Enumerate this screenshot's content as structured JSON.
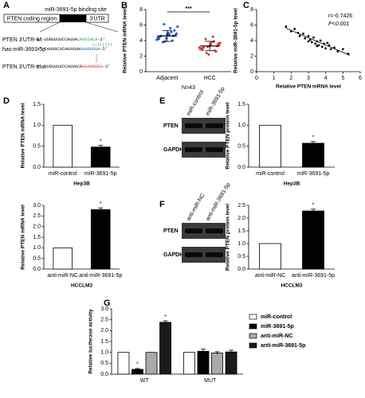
{
  "panel_labels": [
    "A",
    "B",
    "C",
    "D",
    "E",
    "F",
    "G"
  ],
  "diagram": {
    "gene_regions": [
      "PTEN coding region",
      "miR-3691-5p binding site",
      "3'UTR"
    ],
    "sequences": [
      {
        "name": "PTEN 3'UTR-wt",
        "segments": [
          {
            "text": "5'-UUGUUUUCCAUUA",
            "color": "#000000"
          },
          {
            "text": "CAUCCACA",
            "color": "#1a9a50"
          },
          {
            "text": "-3'",
            "color": "#000000"
          }
        ]
      },
      {
        "name": "has-miR-3691-5p",
        "segments": [
          {
            "text": "3'-CAUGGCUCAGGGUA",
            "color": "#000000"
          },
          {
            "text": "GUAGGUGA",
            "color": "#2b5fbf"
          },
          {
            "text": "-5'",
            "color": "#000000"
          }
        ]
      },
      {
        "name": "PTEN 3'UTR-mut",
        "segments": [
          {
            "text": "5'-UUGUUUUCCAUUACA",
            "color": "#000000"
          },
          {
            "text": "GAAGGUGA",
            "color": "#d62728"
          },
          {
            "text": "-3'",
            "color": "#000000"
          }
        ]
      }
    ]
  },
  "blots": [
    {
      "lanes": [
        "miR-control",
        "miR-3691-5p"
      ],
      "rows": [
        "PTEN",
        "GAPDH"
      ]
    },
    {
      "lanes": [
        "anti-miR-NC",
        "anti-miR-3691-5p"
      ],
      "rows": [
        "PTEN",
        "GAPDH"
      ]
    }
  ],
  "chart_data": [
    {
      "type": "dot",
      "categories": [
        "Adjacent",
        "HCC"
      ],
      "colors": [
        "#1f4fd8",
        "#e0302a"
      ],
      "points": [
        [
          4.1,
          4.6,
          5.0,
          3.8,
          4.4,
          5.3,
          4.8,
          6.1,
          4.2,
          4.7,
          5.6,
          3.9,
          4.5,
          4.9,
          5.1,
          4.3,
          4.6,
          5.8,
          4.0,
          4.8
        ],
        [
          3.1,
          2.6,
          3.5,
          4.2,
          2.9,
          3.3,
          3.8,
          2.4,
          3.0,
          3.6,
          4.5,
          3.2,
          2.8,
          3.4,
          3.9,
          2.2,
          3.1,
          3.7,
          2.7,
          3.3
        ]
      ],
      "values": [
        4.6,
        3.3
      ],
      "errors": [
        0.7,
        0.6
      ],
      "ylim": [
        0,
        8
      ],
      "yticks": [
        0,
        2,
        4,
        6,
        8
      ],
      "ylabel": "Relative PTEN mRNA level",
      "xlabel": "N=43",
      "annotation": "***"
    },
    {
      "type": "scatter",
      "x": [
        1.7,
        2.0,
        2.2,
        2.5,
        2.7,
        2.8,
        3.0,
        3.1,
        3.2,
        3.3,
        3.4,
        3.5,
        3.6,
        3.7,
        3.8,
        3.9,
        4.0,
        4.2,
        4.3,
        4.5,
        4.7,
        5.0,
        5.3,
        2.4,
        3.0,
        3.5,
        4.1
      ],
      "y": [
        5.8,
        5.2,
        5.5,
        4.6,
        4.9,
        4.3,
        4.6,
        4.1,
        3.8,
        4.4,
        3.6,
        3.9,
        3.4,
        4.0,
        3.2,
        3.6,
        3.0,
        3.4,
        2.9,
        3.1,
        2.6,
        2.9,
        2.3,
        5.0,
        3.9,
        3.3,
        3.7
      ],
      "color": "#000000",
      "trendline": {
        "x": [
          1.7,
          5.4
        ],
        "y": [
          5.6,
          2.1
        ]
      },
      "xlim": [
        0,
        6
      ],
      "xticks": [
        0,
        1,
        2,
        3,
        4,
        5,
        6
      ],
      "ylim": [
        0,
        8
      ],
      "yticks": [
        0,
        2,
        4,
        6,
        8
      ],
      "xlabel": "Relative PTEN mRNA level",
      "ylabel": "Relative miR-3691-5p level",
      "annotations": [
        "r=-0.7426",
        "P<0.001"
      ]
    },
    {
      "type": "bar",
      "categories": [
        "miR-control",
        "miR-3691-5p"
      ],
      "values": [
        1.0,
        0.48
      ],
      "errors": [
        0,
        0.04
      ],
      "colors": [
        "#ffffff",
        "#000000"
      ],
      "ylim": [
        0,
        1.5
      ],
      "yticks": [
        {
          "value": 0,
          "label": "0.0"
        },
        {
          "value": 0.5,
          "label": "0.5"
        },
        {
          "value": 1,
          "label": "1.0"
        },
        {
          "value": 1.5,
          "label": "1.5"
        }
      ],
      "ylabel": "Relative PTEN mRNA level",
      "xlabel": "Hep3B",
      "annotation": "*"
    },
    {
      "type": "bar",
      "categories": [
        "miR-control",
        "miR-3691-5p"
      ],
      "values": [
        1.0,
        0.57
      ],
      "errors": [
        0,
        0.04
      ],
      "colors": [
        "#ffffff",
        "#000000"
      ],
      "ylim": [
        0,
        1.5
      ],
      "yticks": [
        {
          "value": 0,
          "label": "0.0"
        },
        {
          "value": 0.5,
          "label": "0.5"
        },
        {
          "value": 1,
          "label": "1.0"
        },
        {
          "value": 1.5,
          "label": "1.5"
        }
      ],
      "ylabel": "Relative PTEN protein level",
      "xlabel": "Hep3B",
      "annotation": "*"
    },
    {
      "type": "bar",
      "categories": [
        "anti-miR-NC",
        "anti-miR-3691-5p"
      ],
      "values": [
        1.0,
        2.8
      ],
      "errors": [
        0,
        0.08
      ],
      "colors": [
        "#ffffff",
        "#000000"
      ],
      "ylim": [
        0,
        3
      ],
      "yticks": [
        {
          "value": 0,
          "label": "0.0"
        },
        {
          "value": 0.5,
          "label": "0.5"
        },
        {
          "value": 1,
          "label": "1.0"
        },
        {
          "value": 1.5,
          "label": "1.5"
        },
        {
          "value": 2,
          "label": "2.0"
        },
        {
          "value": 2.5,
          "label": "2.5"
        },
        {
          "value": 3,
          "label": "3.0"
        }
      ],
      "ylabel": "Relative PTEN mRNA level",
      "xlabel": "HCCLM3",
      "annotation": "*"
    },
    {
      "type": "bar",
      "categories": [
        "anti-miR-NC",
        "anti-miR-3691-5p"
      ],
      "values": [
        1.0,
        2.28
      ],
      "errors": [
        0,
        0.07
      ],
      "colors": [
        "#ffffff",
        "#000000"
      ],
      "ylim": [
        0,
        2.5
      ],
      "yticks": [
        {
          "value": 0,
          "label": "0.0"
        },
        {
          "value": 0.5,
          "label": "0.5"
        },
        {
          "value": 1,
          "label": "1.0"
        },
        {
          "value": 1.5,
          "label": "1.5"
        },
        {
          "value": 2,
          "label": "2.0"
        },
        {
          "value": 2.5,
          "label": "2.5"
        }
      ],
      "ylabel": "Relative PTEN protein level",
      "xlabel": "HCCLM3",
      "annotation": "*"
    },
    {
      "type": "grouped",
      "categories": [
        "WT",
        "MUT"
      ],
      "series": [
        {
          "name": "miR-control",
          "color": "#ffffff",
          "values": [
            1.0,
            1.0
          ],
          "errors": [
            0,
            0
          ]
        },
        {
          "name": "miR-3691-5p",
          "color": "#000000",
          "values": [
            0.22,
            1.05
          ],
          "errors": [
            0.04,
            0.1
          ],
          "labels": [
            "*",
            null
          ]
        },
        {
          "name": "anti-miR-NC",
          "color": "#aaaaaa",
          "values": [
            1.0,
            0.97
          ],
          "errors": [
            0,
            0.06
          ]
        },
        {
          "name": "anti-miR-3691-5p",
          "color": "#1a1a1a",
          "values": [
            2.38,
            1.02
          ],
          "errors": [
            0.07,
            0.08
          ],
          "labels": [
            "*",
            null
          ]
        }
      ],
      "ylim": [
        0,
        3
      ],
      "yticks": [
        {
          "value": 0,
          "label": "0.0"
        },
        {
          "value": 0.5,
          "label": "0.5"
        },
        {
          "value": 1,
          "label": "1.0"
        },
        {
          "value": 1.5,
          "label": "1.5"
        },
        {
          "value": 2,
          "label": "2.0"
        },
        {
          "value": 2.5,
          "label": "2.5"
        },
        {
          "value": 3,
          "label": "3.0"
        }
      ],
      "ylabel": "Relative luciferase activity"
    }
  ]
}
